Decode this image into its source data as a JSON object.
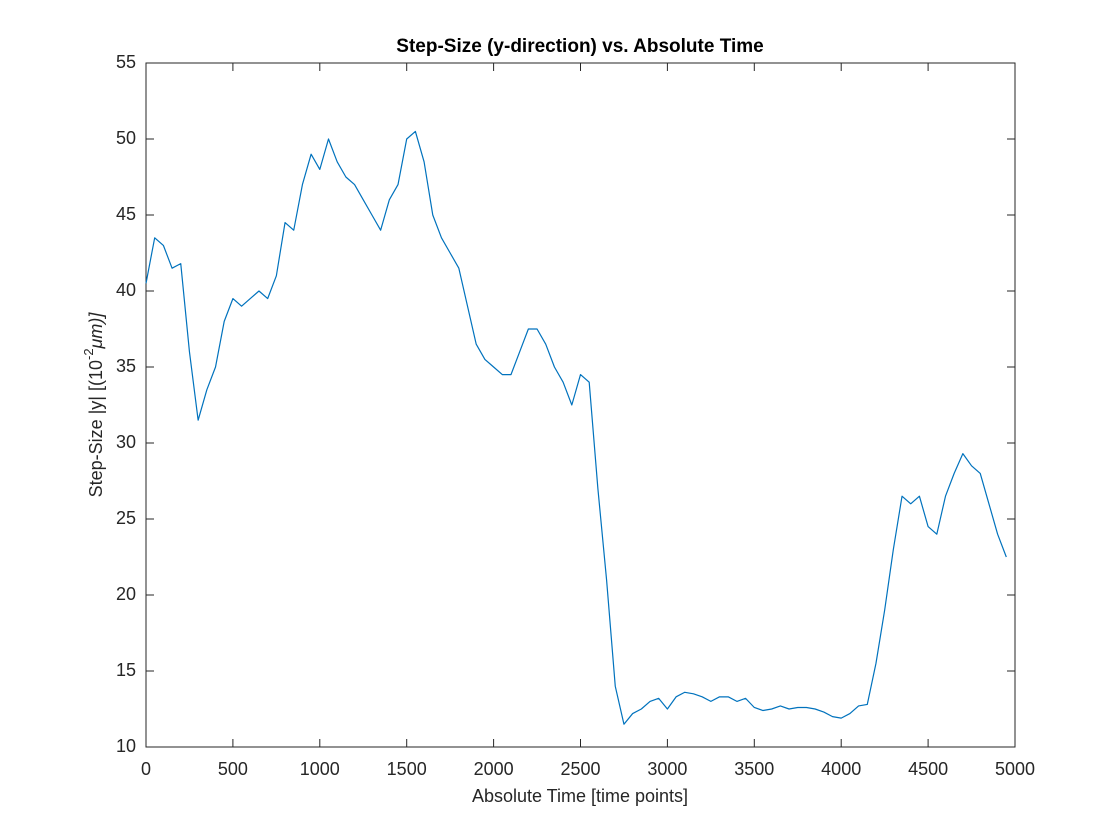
{
  "chart_data": {
    "type": "line",
    "title": "Step-Size (y-direction) vs. Absolute Time",
    "x_label": "Absolute Time [time points]",
    "y_label": [
      "Step-Size |y| [(10",
      "-2",
      "μm)]"
    ],
    "x": [
      0,
      50,
      100,
      150,
      200,
      250,
      300,
      350,
      400,
      450,
      500,
      550,
      600,
      650,
      700,
      750,
      800,
      850,
      900,
      950,
      1000,
      1050,
      1100,
      1150,
      1200,
      1250,
      1300,
      1350,
      1400,
      1450,
      1500,
      1550,
      1600,
      1650,
      1700,
      1750,
      1800,
      1850,
      1900,
      1950,
      2000,
      2050,
      2100,
      2150,
      2200,
      2250,
      2300,
      2350,
      2400,
      2450,
      2500,
      2550,
      2600,
      2650,
      2700,
      2750,
      2800,
      2850,
      2900,
      2950,
      3000,
      3050,
      3100,
      3150,
      3200,
      3250,
      3300,
      3350,
      3400,
      3450,
      3500,
      3550,
      3600,
      3650,
      3700,
      3750,
      3800,
      3850,
      3900,
      3950,
      4000,
      4050,
      4100,
      4150,
      4200,
      4250,
      4300,
      4350,
      4400,
      4450,
      4500,
      4550,
      4600,
      4650,
      4700,
      4750,
      4800,
      4850,
      4900,
      4950
    ],
    "values": [
      40.5,
      43.5,
      43,
      41.5,
      41.8,
      36,
      31.5,
      33.5,
      35,
      38,
      39.5,
      39,
      39.5,
      40,
      39.5,
      41,
      44.5,
      44,
      47,
      49,
      48,
      50,
      48.5,
      47.5,
      47,
      46,
      45,
      44,
      46,
      47,
      50,
      50.5,
      48.5,
      45,
      43.5,
      42.5,
      41.5,
      39,
      36.5,
      35.5,
      35,
      34.5,
      34.5,
      36,
      37.5,
      37.5,
      36.5,
      35,
      34,
      32.5,
      34.5,
      34,
      27,
      21,
      14,
      11.5,
      12.2,
      12.5,
      13,
      13.2,
      12.5,
      13.3,
      13.6,
      13.5,
      13.3,
      13,
      13.3,
      13.3,
      13,
      13.2,
      12.6,
      12.4,
      12.5,
      12.7,
      12.5,
      12.6,
      12.6,
      12.5,
      12.3,
      12,
      11.9,
      12.2,
      12.7,
      12.8,
      15.5,
      19,
      23,
      26.5,
      26,
      26.5,
      24.5,
      24,
      26.5,
      28,
      29.3,
      28.5,
      28,
      26,
      24,
      22.5
    ],
    "color": "#0072bd",
    "xlim": [
      0,
      5000
    ],
    "xticks": [
      0,
      500,
      1000,
      1500,
      2000,
      2500,
      3000,
      3500,
      4000,
      4500,
      5000
    ],
    "ylim": [
      10,
      55
    ],
    "yticks": [
      10,
      15,
      20,
      25,
      30,
      35,
      40,
      45,
      50,
      55
    ],
    "grid": false
  }
}
